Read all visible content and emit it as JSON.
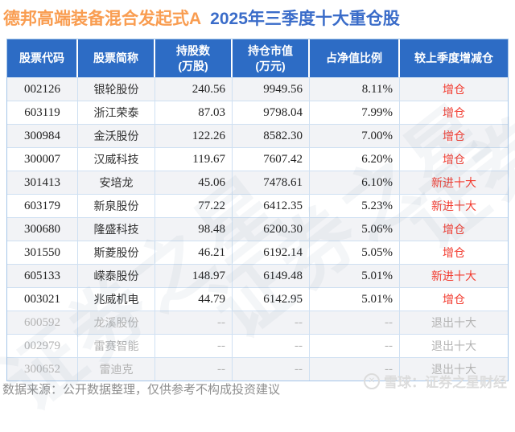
{
  "title": {
    "fund_name": "德邦高端装备混合发起式A",
    "report_title": "2025年三季度十大重仓股"
  },
  "chart_data": {
    "type": "table",
    "title": "德邦高端装备混合发起式A 2025年三季度十大重仓股",
    "columns": [
      {
        "label": "股票代码",
        "sub": ""
      },
      {
        "label": "股票简称",
        "sub": ""
      },
      {
        "label": "持股数",
        "sub": "(万股)"
      },
      {
        "label": "持仓市值",
        "sub": "(万元)"
      },
      {
        "label": "占净值比例",
        "sub": ""
      },
      {
        "label": "较上季度增减仓",
        "sub": ""
      }
    ],
    "rows": [
      {
        "code": "002126",
        "name": "银轮股份",
        "shares": "240.56",
        "value": "9949.56",
        "ratio": "8.11%",
        "change": "增仓",
        "change_type": "increase"
      },
      {
        "code": "603119",
        "name": "浙江荣泰",
        "shares": "87.03",
        "value": "9798.04",
        "ratio": "7.99%",
        "change": "增仓",
        "change_type": "increase"
      },
      {
        "code": "300984",
        "name": "金沃股份",
        "shares": "122.26",
        "value": "8582.30",
        "ratio": "7.00%",
        "change": "增仓",
        "change_type": "increase"
      },
      {
        "code": "300007",
        "name": "汉威科技",
        "shares": "119.67",
        "value": "7607.42",
        "ratio": "6.20%",
        "change": "增仓",
        "change_type": "increase"
      },
      {
        "code": "301413",
        "name": "安培龙",
        "shares": "45.06",
        "value": "7478.61",
        "ratio": "6.10%",
        "change": "新进十大",
        "change_type": "new"
      },
      {
        "code": "603179",
        "name": "新泉股份",
        "shares": "77.22",
        "value": "6412.35",
        "ratio": "5.23%",
        "change": "新进十大",
        "change_type": "new"
      },
      {
        "code": "300680",
        "name": "隆盛科技",
        "shares": "98.48",
        "value": "6200.30",
        "ratio": "5.06%",
        "change": "增仓",
        "change_type": "increase"
      },
      {
        "code": "301550",
        "name": "斯菱股份",
        "shares": "46.21",
        "value": "6192.14",
        "ratio": "5.05%",
        "change": "增仓",
        "change_type": "increase"
      },
      {
        "code": "605133",
        "name": "嵘泰股份",
        "shares": "148.97",
        "value": "6149.48",
        "ratio": "5.01%",
        "change": "新进十大",
        "change_type": "new"
      },
      {
        "code": "003021",
        "name": "兆威机电",
        "shares": "44.79",
        "value": "6142.95",
        "ratio": "5.01%",
        "change": "增仓",
        "change_type": "increase"
      },
      {
        "code": "600592",
        "name": "龙溪股份",
        "shares": "--",
        "value": "--",
        "ratio": "--",
        "change": "退出十大",
        "change_type": "exit"
      },
      {
        "code": "002979",
        "name": "雷赛智能",
        "shares": "--",
        "value": "--",
        "ratio": "--",
        "change": "退出十大",
        "change_type": "exit"
      },
      {
        "code": "300652",
        "name": "雷迪克",
        "shares": "--",
        "value": "--",
        "ratio": "--",
        "change": "退出十大",
        "change_type": "exit"
      }
    ]
  },
  "footer": {
    "source_note": "数据来源：公开数据整理，仅供参考不构成投资建议"
  },
  "branding": {
    "logo_text": "雪球：证券之星财经",
    "logo_glyph": "✕",
    "watermark_text": "证券之星"
  },
  "colors": {
    "header_bg": "#2d6cc5",
    "title_orange": "#f99d51",
    "title_blue": "#3a6cc9",
    "increase_red": "#f23a2e",
    "exit_green": "#2fa44d",
    "row_stripe": "#f2f3f6",
    "table_border": "#cfe0f2",
    "muted_text": "#b3b3b3",
    "footer_gray": "#8f8f8f"
  }
}
